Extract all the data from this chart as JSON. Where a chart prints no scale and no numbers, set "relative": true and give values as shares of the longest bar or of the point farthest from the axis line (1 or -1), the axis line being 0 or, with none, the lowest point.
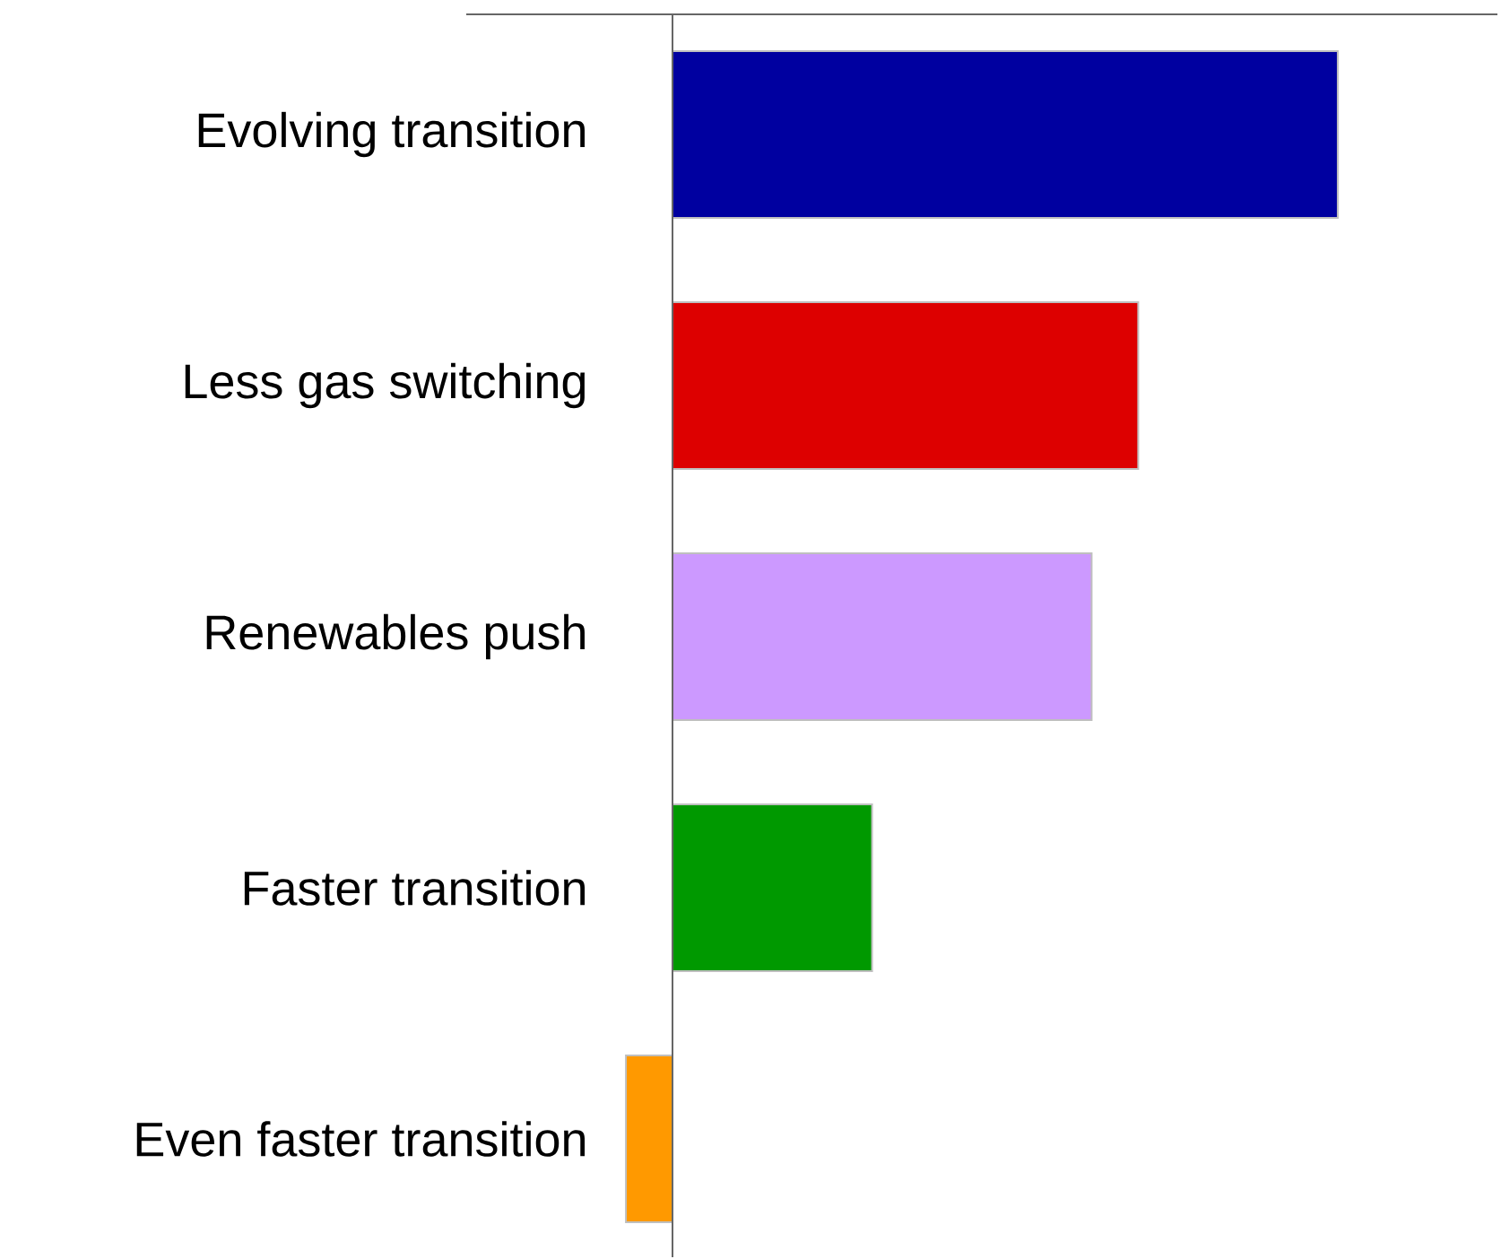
{
  "chart_data": {
    "type": "bar",
    "orientation": "horizontal",
    "relative": true,
    "categories": [
      "Evolving transition",
      "Less gas switching",
      "Renewables push",
      "Faster transition",
      "Even faster transition"
    ],
    "values": [
      1,
      0.7,
      0.63,
      0.3,
      -0.07
    ],
    "colors": [
      "#0000a0",
      "#dd0000",
      "#cc99ff",
      "#009900",
      "#ff9900"
    ]
  }
}
